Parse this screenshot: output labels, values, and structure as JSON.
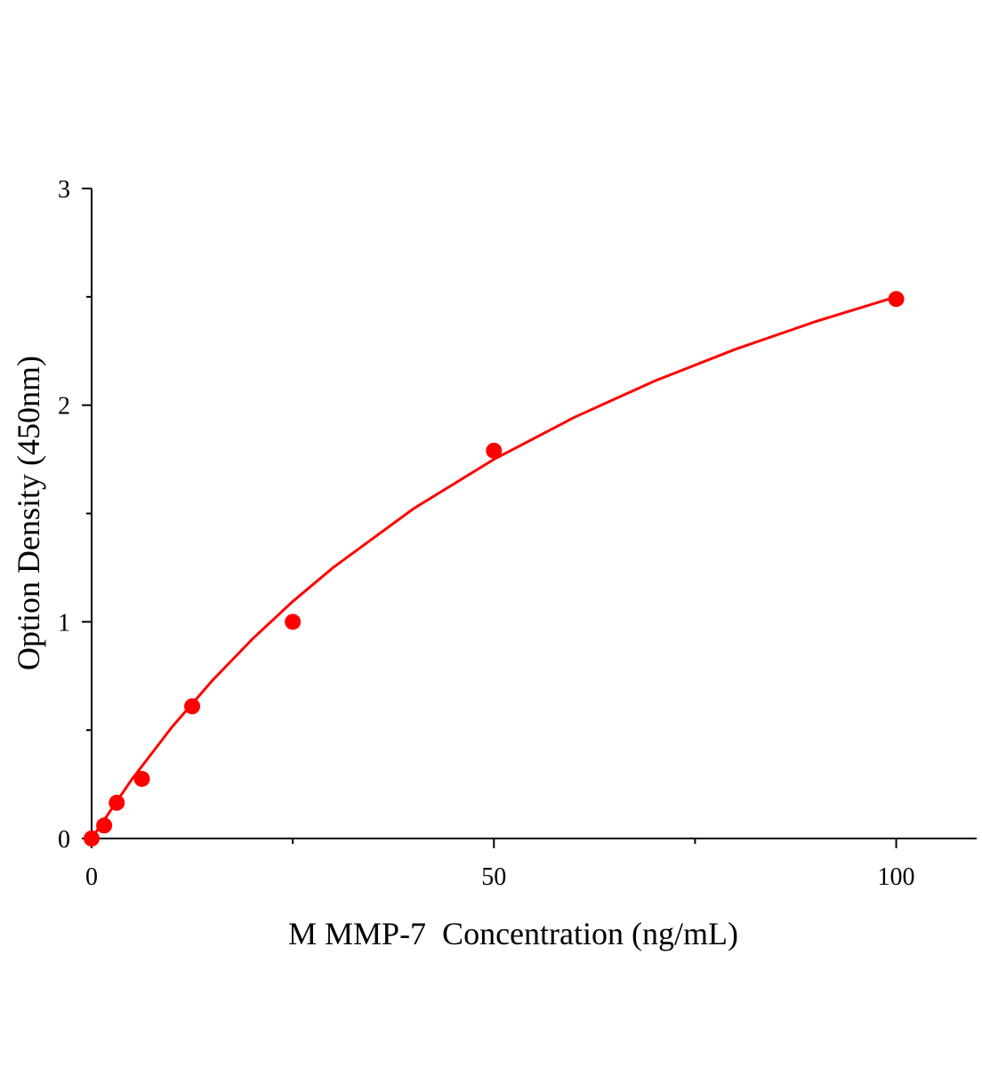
{
  "chart_data": {
    "type": "scatter",
    "x_label": "M MMP-7  Concentration (ng/mL)",
    "y_label": "Option Density (450nm)",
    "xlim": [
      0,
      110
    ],
    "xticks": [
      0,
      50,
      100
    ],
    "xminorticks": [
      25,
      75
    ],
    "ylim": [
      0,
      3
    ],
    "yticks": [
      0,
      1,
      2,
      3
    ],
    "yminorticks": [
      0.5,
      1.5,
      2.5
    ],
    "grid": false,
    "series": [
      {
        "mode": "markers",
        "color": "#ff0000",
        "x": [
          0,
          1.5625,
          3.125,
          6.25,
          12.5,
          25,
          50,
          100
        ],
        "values": [
          0,
          0.06,
          0.165,
          0.275,
          0.61,
          1.0,
          1.79,
          2.49
        ]
      },
      {
        "mode": "line",
        "color": "#ff0000",
        "x": [
          0,
          5,
          10,
          15,
          20,
          25,
          30,
          40,
          50,
          60,
          70,
          80,
          90,
          100
        ],
        "values": [
          0,
          0.273,
          0.515,
          0.729,
          0.921,
          1.094,
          1.25,
          1.522,
          1.75,
          1.944,
          2.112,
          2.258,
          2.386,
          2.5
        ]
      }
    ]
  }
}
